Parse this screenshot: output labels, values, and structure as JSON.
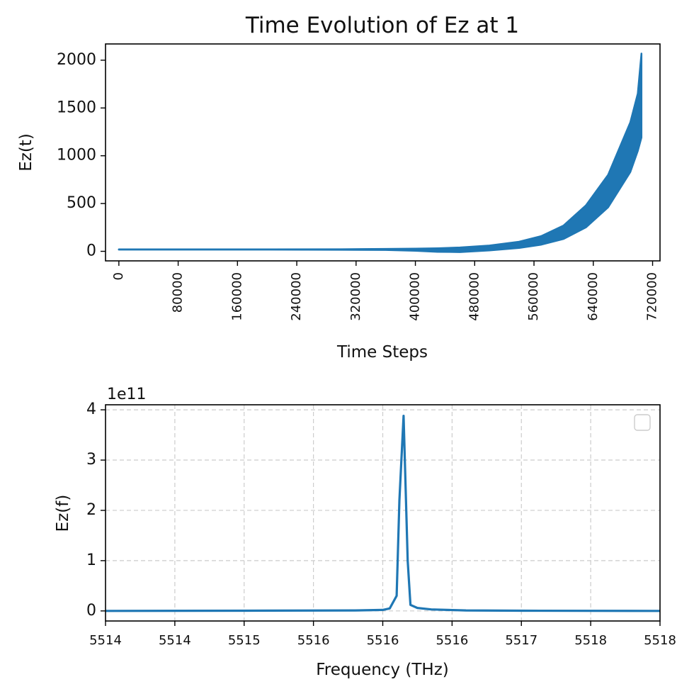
{
  "chart_data": [
    {
      "type": "area",
      "title": "Time Evolution of Ez at 1",
      "xlabel": "Time Steps",
      "ylabel": "Ez(t)",
      "xlim": [
        -18000,
        730000
      ],
      "ylim": [
        -100,
        2170
      ],
      "xticks": [
        0,
        80000,
        160000,
        240000,
        320000,
        400000,
        480000,
        560000,
        640000,
        720000
      ],
      "xtick_labels": [
        "0",
        "80000",
        "160000",
        "240000",
        "320000",
        "400000",
        "480000",
        "560000",
        "640000",
        "720000"
      ],
      "yticks": [
        0,
        500,
        1000,
        1500,
        2000
      ],
      "ytick_labels": [
        "0",
        "500",
        "1000",
        "1500",
        "2000"
      ],
      "color": "#1f77b4",
      "series": [
        {
          "x": [
            0,
            100000,
            200000,
            300000,
            360000,
            400000,
            430000,
            460000,
            500000,
            540000,
            570000,
            600000,
            630000,
            660000,
            690000,
            700000,
            705000
          ],
          "upper": [
            20,
            20,
            20,
            22,
            25,
            28,
            32,
            40,
            60,
            100,
            160,
            270,
            480,
            800,
            1350,
            1650,
            2070
          ],
          "lower": [
            18,
            18,
            18,
            16,
            14,
            5,
            -5,
            -8,
            10,
            35,
            70,
            130,
            250,
            460,
            830,
            1050,
            1190
          ]
        }
      ]
    },
    {
      "type": "line",
      "xlabel": "Frequency (THz)",
      "ylabel": "Ez(f)",
      "offset_text": "1e11",
      "grid": true,
      "legend": "top-right (empty)",
      "xlim": [
        5514.0,
        5518.0
      ],
      "ylim": [
        -0.2,
        4.1
      ],
      "xticks": [
        5514.0,
        5514.5,
        5515.0,
        5515.5,
        5516.0,
        5516.5,
        5517.0,
        5517.5,
        5518.0
      ],
      "xtick_labels": [
        "5514",
        "5514",
        "5515",
        "5516",
        "5516",
        "5516",
        "5517",
        "5518",
        "5518"
      ],
      "yticks": [
        0,
        1,
        2,
        3,
        4
      ],
      "ytick_labels": [
        "0",
        "1",
        "2",
        "3",
        "4"
      ],
      "color": "#1f77b4",
      "series": [
        {
          "x": [
            5514.0,
            5515.0,
            5515.8,
            5516.0,
            5516.05,
            5516.1,
            5516.12,
            5516.15,
            5516.18,
            5516.2,
            5516.25,
            5516.35,
            5516.6,
            5517.0,
            5518.0
          ],
          "y": [
            0.0,
            0.005,
            0.01,
            0.02,
            0.05,
            0.3,
            2.2,
            3.88,
            1.0,
            0.12,
            0.06,
            0.03,
            0.01,
            0.005,
            0.0
          ]
        }
      ]
    }
  ]
}
